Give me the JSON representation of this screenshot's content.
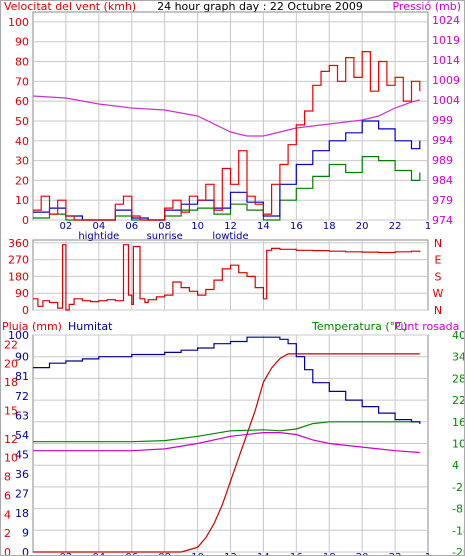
{
  "header": {
    "wind_label": "Velocitat del vent (kmh)",
    "title": "24 hour graph day : 22 Octubre 2009",
    "pressure_label": "Pressió (mb)"
  },
  "wind_axis": {
    "ticks": [
      0,
      10,
      20,
      30,
      40,
      50,
      60,
      70,
      80,
      90,
      100
    ],
    "min": 0,
    "max": 105
  },
  "pressure_axis": {
    "ticks": [
      974,
      979,
      984,
      989,
      994,
      999,
      1004,
      1009,
      1014,
      1019,
      1024
    ],
    "min": 974,
    "max": 1026
  },
  "direction_axis": {
    "ticks": [
      0,
      90,
      180,
      270,
      360
    ],
    "compass": [
      "N",
      "W",
      "S",
      "E",
      "N"
    ],
    "min": 0,
    "max": 375
  },
  "bottom_header": {
    "rain_label": "Pluja (mm)",
    "humidity_label": "Humitat",
    "temp_label": "Temperatura (°C)",
    "dew_label": "Punt rosada"
  },
  "rain_axis": {
    "ticks": [
      0,
      2,
      4,
      6,
      8,
      10,
      12,
      15,
      18,
      20,
      22
    ],
    "min": 0,
    "max": 23
  },
  "humidity_axis": {
    "ticks": [
      0,
      9,
      18,
      27,
      36,
      45,
      54,
      63,
      72,
      81,
      90,
      100
    ],
    "min": 0,
    "max": 100
  },
  "temp_axis": {
    "ticks": [
      -20,
      -14,
      -8,
      -2,
      4,
      10,
      16,
      22,
      28,
      34,
      40
    ],
    "min": -20,
    "max": 40
  },
  "x_ticks": [
    "02",
    "04",
    "06",
    "08",
    "10",
    "12",
    "14",
    "16",
    "18",
    "20",
    "22",
    "1"
  ],
  "x_events": [
    "hightide",
    "sunrise",
    "lowtide"
  ],
  "colors": {
    "wind_avg": "#0000cc",
    "wind_gust": "#ee0000",
    "wind_low": "#008000",
    "pressure": "#cc33cc",
    "direction": "#dd0000",
    "rain": "#cc0000",
    "humidity": "#000099",
    "temperature": "#008800",
    "dewpoint": "#cc00cc",
    "grid": "#c8c8c8",
    "left_axis": "#dd0000",
    "right_axis": "#cc00cc"
  },
  "chart_data": [
    {
      "type": "line",
      "title": "24 hour graph day : 22 Octubre 2009",
      "ylabel": "Velocitat del vent (kmh)",
      "y2label": "Pressió (mb)",
      "xlim": [
        0,
        24
      ],
      "ylim": [
        0,
        105
      ],
      "y2lim": [
        974,
        1026
      ],
      "grid": true,
      "series": [
        {
          "name": "gust",
          "axis": "left",
          "x": [
            0,
            0.5,
            1,
            1.5,
            2,
            2.5,
            3,
            3.5,
            4,
            4.5,
            5,
            5.5,
            6,
            6.5,
            7,
            7.5,
            8,
            8.5,
            9,
            9.5,
            10,
            10.5,
            11,
            11.5,
            12,
            12.5,
            13,
            13.5,
            14,
            14.5,
            15,
            15.5,
            16,
            16.5,
            17,
            17.5,
            18,
            18.5,
            19,
            19.5,
            20,
            20.5,
            21,
            21.5,
            22,
            22.5,
            23,
            23.5
          ],
          "values": [
            5,
            12,
            3,
            10,
            2,
            0,
            0,
            0,
            0,
            0,
            8,
            12,
            2,
            0,
            0,
            0,
            6,
            10,
            4,
            12,
            10,
            18,
            5,
            26,
            18,
            35,
            12,
            8,
            3,
            18,
            28,
            38,
            48,
            55,
            68,
            75,
            78,
            70,
            82,
            72,
            85,
            65,
            80,
            68,
            72,
            60,
            70,
            65
          ]
        },
        {
          "name": "average",
          "axis": "left",
          "x": [
            0,
            1,
            2,
            3,
            4,
            5,
            6,
            7,
            8,
            9,
            10,
            11,
            12,
            13,
            14,
            15,
            16,
            17,
            18,
            19,
            20,
            21,
            22,
            23,
            23.5
          ],
          "values": [
            4,
            6,
            2,
            0,
            0,
            5,
            1,
            0,
            5,
            8,
            10,
            6,
            14,
            9,
            2,
            18,
            28,
            35,
            40,
            44,
            50,
            46,
            40,
            36,
            40
          ]
        },
        {
          "name": "low",
          "axis": "left",
          "x": [
            0,
            1,
            2,
            3,
            4,
            5,
            6,
            7,
            8,
            9,
            10,
            11,
            12,
            13,
            14,
            15,
            16,
            17,
            18,
            19,
            20,
            21,
            22,
            23,
            23.5
          ],
          "values": [
            1,
            3,
            0,
            0,
            0,
            2,
            0,
            0,
            2,
            5,
            6,
            3,
            8,
            5,
            0,
            10,
            16,
            22,
            28,
            24,
            32,
            30,
            25,
            20,
            24
          ]
        },
        {
          "name": "pressure",
          "axis": "right",
          "x": [
            0,
            2,
            4,
            6,
            8,
            10,
            12,
            13,
            14,
            15,
            16,
            17,
            18,
            19,
            20,
            21,
            22,
            23,
            23.5
          ],
          "values": [
            1005,
            1004.5,
            1003,
            1002,
            1001.5,
            1000,
            996,
            995,
            995,
            996,
            997,
            997.5,
            998,
            998.5,
            999,
            1000,
            1002,
            1003.5,
            1004
          ]
        }
      ]
    },
    {
      "type": "line",
      "ylabel": "Wind direction",
      "xlim": [
        0,
        24
      ],
      "ylim": [
        0,
        375
      ],
      "grid": true,
      "series": [
        {
          "name": "direction",
          "x": [
            0,
            0.3,
            0.6,
            1,
            1.5,
            1.8,
            2,
            2.2,
            2.5,
            3,
            3.5,
            4,
            4.5,
            5,
            5.5,
            5.8,
            6,
            6.1,
            6.5,
            6.8,
            7,
            7.5,
            8,
            8.5,
            9,
            9.5,
            10,
            10.5,
            11,
            11.5,
            12,
            12.5,
            13,
            13.5,
            14,
            14.2,
            14.5,
            15,
            16,
            17,
            18,
            19,
            20,
            21,
            22,
            23,
            23.5
          ],
          "values": [
            60,
            20,
            50,
            40,
            10,
            350,
            0,
            30,
            60,
            50,
            45,
            50,
            55,
            50,
            350,
            80,
            30,
            340,
            60,
            40,
            55,
            70,
            80,
            150,
            120,
            100,
            80,
            110,
            160,
            220,
            240,
            200,
            180,
            120,
            60,
            320,
            330,
            325,
            320,
            318,
            315,
            312,
            310,
            308,
            312,
            315,
            310
          ]
        }
      ]
    },
    {
      "type": "line",
      "ylabel": "Pluja (mm)",
      "y2label": "Temperatura (°C)",
      "xlim": [
        0,
        24
      ],
      "ylim": [
        0,
        23
      ],
      "y2lim": [
        -20,
        40
      ],
      "grid": true,
      "series": [
        {
          "name": "rain",
          "axis": "rain",
          "x": [
            0,
            9,
            10,
            10.5,
            11,
            11.5,
            12,
            12.5,
            13,
            13.5,
            14,
            14.5,
            15,
            15.5,
            16,
            16.5,
            17,
            23.5
          ],
          "values": [
            0,
            0,
            0.5,
            1.5,
            3,
            5,
            7.5,
            10,
            12.5,
            15,
            18,
            19.5,
            20.5,
            21,
            21,
            21,
            21,
            21
          ]
        },
        {
          "name": "humidity",
          "axis": "humidity",
          "x": [
            0,
            1,
            2,
            3,
            4,
            5,
            6,
            7,
            8,
            9,
            10,
            11,
            12,
            13,
            14,
            15,
            15.5,
            16,
            16.5,
            17,
            18,
            19,
            20,
            21,
            22,
            23,
            23.5
          ],
          "values": [
            85,
            87,
            88,
            89,
            90,
            90,
            91,
            91,
            92,
            93,
            94,
            96,
            97,
            99,
            99,
            98,
            96,
            90,
            84,
            78,
            74,
            70,
            67,
            64,
            61,
            60,
            59
          ]
        },
        {
          "name": "temperature",
          "axis": "temp",
          "x": [
            0,
            2,
            4,
            6,
            8,
            10,
            12,
            14,
            15,
            16,
            17,
            18,
            20,
            22,
            23.5
          ],
          "values": [
            10.5,
            10.5,
            10.5,
            10.5,
            10.8,
            12,
            13.5,
            13.8,
            13.5,
            14,
            15.5,
            16,
            16,
            16,
            16
          ]
        },
        {
          "name": "dewpoint",
          "axis": "temp",
          "x": [
            0,
            2,
            4,
            6,
            8,
            10,
            12,
            14,
            15,
            16,
            17,
            18,
            20,
            22,
            23.5
          ],
          "values": [
            8,
            8,
            8,
            8,
            8.5,
            10,
            12,
            13,
            13,
            12.5,
            11,
            10,
            9,
            8,
            7.5
          ]
        }
      ]
    }
  ]
}
